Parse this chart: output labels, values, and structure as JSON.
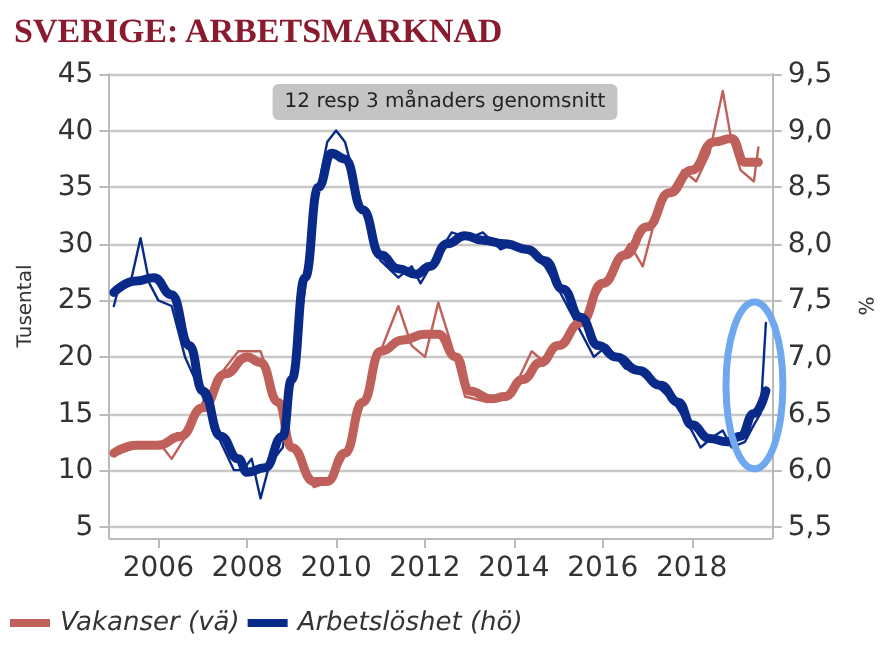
{
  "chart_data": {
    "type": "line",
    "title": "SVERIGE: ARBETSMARKNAD",
    "ylabel": "Tusental",
    "y2label": "%",
    "annotations": [
      "12 resp 3 månaders genomsnitt"
    ],
    "xlim": [
      2004.9,
      2019.8
    ],
    "xticks": [
      2006,
      2008,
      2010,
      2012,
      2014,
      2016,
      2018
    ],
    "ylim": [
      4,
      45
    ],
    "yticks": [
      5,
      10,
      15,
      20,
      25,
      30,
      35,
      40,
      45
    ],
    "y2lim": [
      5.4,
      9.5
    ],
    "y2ticks": [
      {
        "value": 5.5,
        "label": "5,5"
      },
      {
        "value": 6,
        "label": "6,0"
      },
      {
        "value": 6.5,
        "label": "6,5"
      },
      {
        "value": 7,
        "label": "7,0"
      },
      {
        "value": 7.5,
        "label": "7,5"
      },
      {
        "value": 8,
        "label": "8,0"
      },
      {
        "value": 8.5,
        "label": "8,5"
      },
      {
        "value": 9,
        "label": "9,0"
      },
      {
        "value": 9.5,
        "label": "9,5"
      }
    ],
    "grid": "y",
    "legend": "bottom left",
    "marker": "none",
    "series": [
      {
        "color": "#c0605a",
        "x": [
          2005.0,
          2005.5,
          2006.0,
          2006.3,
          2006.7,
          2007.0,
          2007.5,
          2007.8,
          2008.3,
          2008.7,
          2009.0,
          2009.5,
          2009.9,
          2010.3,
          2010.7,
          2011.0,
          2011.4,
          2011.7,
          2012.0,
          2012.3,
          2012.6,
          2012.9,
          2013.4,
          2013.9,
          2014.1,
          2014.4,
          2014.7,
          2015.0,
          2015.4,
          2015.8,
          2016.2,
          2016.6,
          2016.9,
          2017.2,
          2017.5,
          2017.8,
          2018.1,
          2018.4,
          2018.7,
          2018.9,
          2019.1,
          2019.4,
          2019.5
        ],
        "values": [
          11.3,
          12,
          12.5,
          11,
          13.5,
          16,
          19,
          20.5,
          20.5,
          16,
          12,
          8.5,
          9,
          12,
          17,
          20.5,
          24.5,
          21,
          20,
          24.8,
          21,
          16.5,
          16,
          16.5,
          18,
          20.5,
          19.5,
          21,
          22.5,
          25,
          27.5,
          30,
          28,
          32.5,
          34.5,
          36.5,
          35.5,
          38,
          43.5,
          39,
          36.5,
          35.5,
          38.5
        ]
      },
      {
        "color": "#0a2a8a",
        "axis": "y2",
        "x": [
          2005.0,
          2005.1,
          2005.4,
          2005.6,
          2005.8,
          2006.0,
          2006.3,
          2006.6,
          2007.0,
          2007.4,
          2007.7,
          2007.9,
          2008.1,
          2008.3,
          2008.5,
          2008.8,
          2009.0,
          2009.3,
          2009.6,
          2009.8,
          2010.0,
          2010.2,
          2010.6,
          2011.0,
          2011.4,
          2011.7,
          2011.9,
          2012.2,
          2012.6,
          2013.0,
          2013.3,
          2013.7,
          2014.0,
          2014.3,
          2014.7,
          2015.0,
          2015.4,
          2015.8,
          2016.1,
          2016.5,
          2016.9,
          2017.2,
          2017.6,
          2018.0,
          2018.2,
          2018.5,
          2018.7,
          2018.9,
          2019.2,
          2019.4,
          2019.55,
          2019.67
        ],
        "values": [
          7.45,
          7.6,
          7.7,
          8.05,
          7.65,
          7.5,
          7.45,
          7.0,
          6.65,
          6.25,
          6.0,
          6.0,
          6.1,
          5.75,
          6.05,
          6.2,
          6.75,
          7.6,
          8.5,
          8.9,
          9.0,
          8.9,
          8.3,
          7.85,
          7.7,
          7.8,
          7.65,
          7.85,
          8.1,
          8.05,
          8.1,
          7.95,
          8.0,
          7.95,
          7.8,
          7.6,
          7.3,
          7.0,
          7.1,
          6.9,
          6.85,
          6.75,
          6.6,
          6.35,
          6.2,
          6.3,
          6.35,
          6.2,
          6.25,
          6.4,
          6.5,
          7.3
        ]
      },
      {
        "name": "Vakanser (vä)",
        "color": "#c0605a",
        "x": [
          2005.0,
          2005.5,
          2006.0,
          2006.5,
          2007.0,
          2007.5,
          2008.0,
          2008.3,
          2008.7,
          2009.0,
          2009.5,
          2009.8,
          2010.2,
          2010.6,
          2011.0,
          2011.5,
          2012.0,
          2012.3,
          2012.7,
          2013.0,
          2013.5,
          2013.8,
          2014.2,
          2014.6,
          2015.0,
          2015.5,
          2016.0,
          2016.5,
          2017.0,
          2017.5,
          2018.0,
          2018.5,
          2018.9,
          2019.2,
          2019.5
        ],
        "values": [
          11.5,
          12.2,
          12.2,
          13,
          15.5,
          18.5,
          20,
          19.5,
          16,
          12,
          9,
          9,
          11.5,
          16,
          20.5,
          21.5,
          22,
          22,
          20,
          17,
          16.3,
          16.5,
          18,
          19.5,
          21,
          23,
          26.5,
          29,
          31.5,
          34.5,
          36.5,
          39,
          39.3,
          37.2,
          37.2
        ]
      },
      {
        "name": "Arbetslöshet (hö)",
        "color": "#0a2a8a",
        "axis": "y2",
        "x": [
          2005.0,
          2005.5,
          2005.9,
          2006.3,
          2006.7,
          2007.0,
          2007.4,
          2007.8,
          2008.0,
          2008.4,
          2008.8,
          2009.0,
          2009.3,
          2009.6,
          2009.9,
          2010.2,
          2010.6,
          2011.0,
          2011.4,
          2011.8,
          2012.1,
          2012.5,
          2012.9,
          2013.3,
          2013.8,
          2014.3,
          2014.7,
          2015.1,
          2015.5,
          2015.9,
          2016.3,
          2016.8,
          2017.3,
          2017.7,
          2018.0,
          2018.4,
          2018.8,
          2019.1,
          2019.4,
          2019.67
        ],
        "values": [
          7.57,
          7.67,
          7.7,
          7.55,
          7.1,
          6.7,
          6.3,
          6.1,
          5.98,
          6.02,
          6.3,
          6.8,
          7.7,
          8.5,
          8.8,
          8.75,
          8.3,
          7.9,
          7.78,
          7.73,
          7.8,
          8.0,
          8.07,
          8.03,
          8.0,
          7.95,
          7.85,
          7.6,
          7.35,
          7.1,
          7.0,
          6.88,
          6.75,
          6.6,
          6.4,
          6.28,
          6.25,
          6.3,
          6.5,
          6.7
        ]
      }
    ]
  }
}
